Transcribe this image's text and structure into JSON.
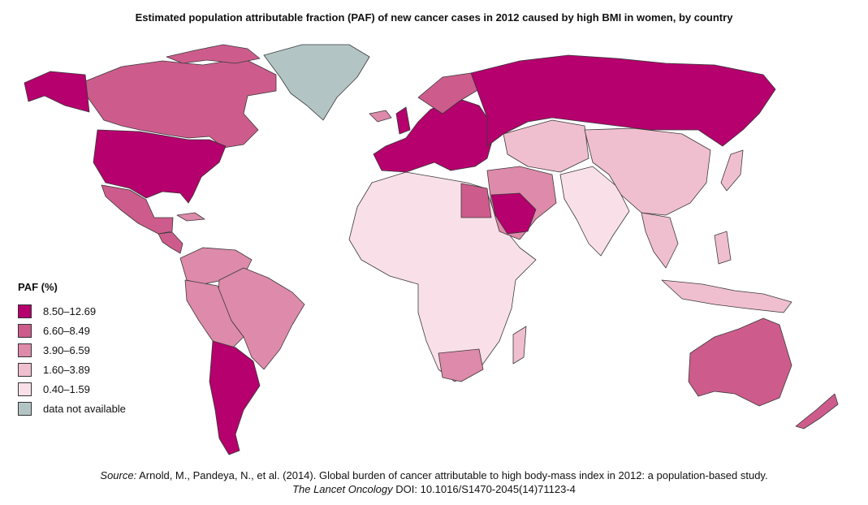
{
  "title": "Estimated population attributable fraction (PAF) of new cancer cases in 2012 caused by high BMI in women, by country",
  "legend": {
    "title": "PAF (%)",
    "items": [
      {
        "label": "8.50–12.69",
        "color": "#b5006d"
      },
      {
        "label": "6.60–8.49",
        "color": "#cd5c8c"
      },
      {
        "label": "3.90–6.59",
        "color": "#de8aaa"
      },
      {
        "label": "1.60–3.89",
        "color": "#f0bfcf"
      },
      {
        "label": "0.40–1.59",
        "color": "#f9e0e8"
      },
      {
        "label": "data not available",
        "color": "#b3c4c4"
      }
    ]
  },
  "source": {
    "prefix": "Source:",
    "line1": "Arnold, M., Pandeya, N., et al. (2014). Global burden of cancer attributable to high body-mass index in 2012: a population-based study.",
    "journal": "The Lancet Oncology",
    "doi": "DOI: 10.1016/S1470-2045(14)71123-4"
  },
  "regions": [
    {
      "name": "canada",
      "category": 1
    },
    {
      "name": "alaska",
      "category": 0
    },
    {
      "name": "usa",
      "category": 0
    },
    {
      "name": "mexico",
      "category": 1
    },
    {
      "name": "greenland",
      "category": 5
    },
    {
      "name": "brazil",
      "category": 2
    },
    {
      "name": "argentina",
      "category": 0
    },
    {
      "name": "russia",
      "category": 0
    },
    {
      "name": "china",
      "category": 3
    },
    {
      "name": "india",
      "category": 4
    },
    {
      "name": "australia",
      "category": 1
    },
    {
      "name": "saudi-arabia",
      "category": 0
    },
    {
      "name": "egypt",
      "category": 1
    },
    {
      "name": "south-africa",
      "category": 2
    }
  ]
}
